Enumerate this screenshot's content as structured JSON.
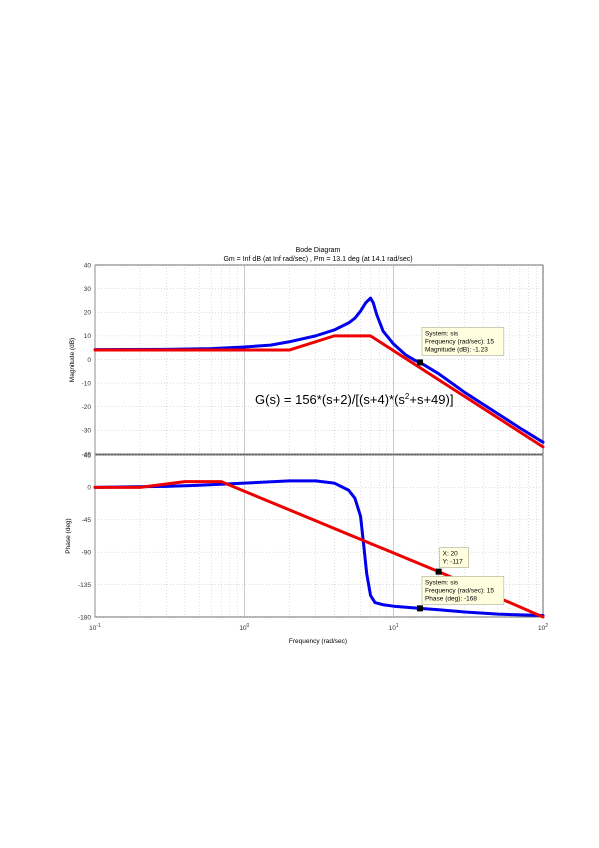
{
  "chart_data": {
    "type": "line",
    "title": "Bode Diagram",
    "subtitle": "Gm = Inf dB (at Inf rad/sec) ,  Pm = 13.1 deg (at 14.1 rad/sec)",
    "xlabel": "Frequency  (rad/sec)",
    "xscale": "log",
    "xlim": [
      0.1,
      100
    ],
    "xticks": [
      "10",
      "10",
      "10",
      "10"
    ],
    "xtick_exponents": [
      "-1",
      "0",
      "1",
      "2"
    ],
    "grid": true,
    "formula": {
      "pre": "G(s) = 156*(s+2)/[(s+4)*(s",
      "sup": "2",
      "post": "+s+49)]"
    },
    "magnitude": {
      "ylabel": "Magnitude (dB)",
      "ylim": [
        -40,
        40
      ],
      "yticks": [
        "40",
        "30",
        "20",
        "10",
        "0",
        "-10",
        "-20",
        "-30",
        "-40"
      ],
      "series": [
        {
          "color": "#0000ee",
          "x": [
            0.1,
            0.3,
            0.6,
            1,
            1.5,
            2,
            3,
            4,
            5,
            5.5,
            6,
            6.5,
            7,
            7.3,
            7.7,
            8.5,
            10,
            12,
            14,
            15,
            20,
            30,
            50,
            70,
            100
          ],
          "y": [
            4.2,
            4.3,
            4.6,
            5.3,
            6.1,
            7.5,
            10,
            12.5,
            15.5,
            17.5,
            20.5,
            24,
            26,
            24,
            19,
            12,
            6.5,
            2,
            -0.5,
            -1.23,
            -6,
            -14,
            -23,
            -29,
            -35
          ]
        },
        {
          "color": "#ee0000",
          "x": [
            0.1,
            2,
            4,
            7,
            100
          ],
          "y": [
            4,
            4,
            10,
            10,
            -37
          ]
        }
      ],
      "datatip": {
        "x": 15,
        "y": -1.23,
        "lines": [
          "System: sis",
          "Frequency (rad/sec): 15",
          "Magnitude (dB): -1.23"
        ]
      }
    },
    "phase": {
      "ylabel": "Phase (deg)",
      "ylim": [
        -180,
        45
      ],
      "yticks": [
        "45",
        "0",
        "-45",
        "-90",
        "-135",
        "-180"
      ],
      "series": [
        {
          "color": "#0000ee",
          "x": [
            0.1,
            0.3,
            0.5,
            1,
            2,
            3,
            4,
            5,
            5.5,
            6,
            6.3,
            6.6,
            7,
            7.5,
            8.5,
            10,
            15,
            20,
            30,
            50,
            100
          ],
          "y": [
            0,
            1.5,
            3,
            6,
            9,
            9,
            6,
            -4,
            -15,
            -40,
            -80,
            -120,
            -150,
            -160,
            -163,
            -165,
            -168,
            -170,
            -173,
            -176,
            -178
          ]
        },
        {
          "color": "#ee0000",
          "x": [
            0.1,
            0.2,
            0.4,
            0.7,
            20,
            100
          ],
          "y": [
            0,
            0,
            8,
            8,
            -117,
            -180
          ]
        }
      ],
      "datatips": [
        {
          "x": 15,
          "y": -168,
          "lines": [
            "System: sis",
            "Frequency (rad/sec): 15",
            "Phase (deg): -168"
          ]
        },
        {
          "x": 20,
          "y": -117,
          "lines": [
            "X: 20",
            "Y: -117"
          ]
        }
      ]
    }
  }
}
